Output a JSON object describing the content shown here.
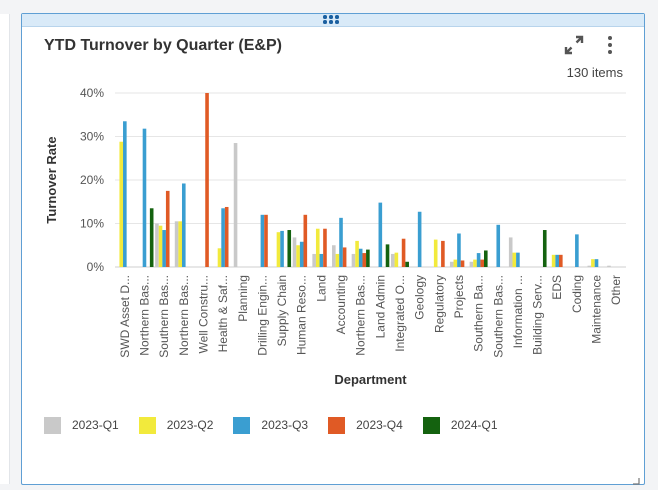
{
  "card": {
    "title": "YTD Turnover by Quarter (E&P)",
    "item_count": "130 items",
    "expand_icon": "expand-icon",
    "more_icon": "more-vertical-icon"
  },
  "colors": {
    "border": "#5f9fd4",
    "series": [
      "#c9c9c9",
      "#f2ea3c",
      "#3a9ed1",
      "#e05a25",
      "#14620f"
    ]
  },
  "chart_data": {
    "type": "bar",
    "title": "YTD Turnover by Quarter (E&P)",
    "xlabel": "Department",
    "ylabel": "Turnover Rate",
    "ylim": [
      0,
      0.4
    ],
    "yticks": [
      "0%",
      "10%",
      "20%",
      "30%",
      "40%"
    ],
    "grid": true,
    "legend_position": "bottom",
    "categories": [
      "SWD Asset D...",
      "Northern Bas...",
      "Southern Bas...",
      "Northern Bas...",
      "Well Constru...",
      "Health & Saf...",
      "Planning",
      "Drilling Engin...",
      "Supply Chain",
      "Human Reso...",
      "Land",
      "Accounting",
      "Northern Bas...",
      "Land Admin",
      "Integrated O...",
      "Geology",
      "Regulatory",
      "Projects",
      "Southern Ba...",
      "Southern Bas...",
      "Information ...",
      "Building Serv...",
      "EDS",
      "Coding",
      "Maintenance",
      "Other"
    ],
    "series": [
      {
        "name": "2023-Q1",
        "values": [
          0,
          0,
          0.1,
          0.105,
          0,
          0,
          0.285,
          0,
          0,
          0.068,
          0.03,
          0.05,
          0.03,
          0,
          0.03,
          0,
          0,
          0.012,
          0.012,
          0,
          0.068,
          0,
          0,
          0,
          0.003,
          0.003
        ]
      },
      {
        "name": "2023-Q2",
        "values": [
          0.288,
          0,
          0.095,
          0.105,
          0,
          0.043,
          0,
          0,
          0.08,
          0.05,
          0.088,
          0.03,
          0.06,
          0,
          0.033,
          0,
          0.063,
          0.017,
          0.017,
          0,
          0.033,
          0,
          0.028,
          0,
          0.018,
          0
        ]
      },
      {
        "name": "2023-Q3",
        "values": [
          0.335,
          0.318,
          0.085,
          0.192,
          0,
          0.135,
          0,
          0.12,
          0.083,
          0.058,
          0.03,
          0.113,
          0.042,
          0.148,
          0,
          0.127,
          0,
          0.077,
          0.032,
          0.097,
          0.033,
          0,
          0.028,
          0.075,
          0.018,
          0
        ]
      },
      {
        "name": "2023-Q4",
        "values": [
          0,
          0,
          0.175,
          0,
          0.4,
          0.138,
          0,
          0.12,
          0,
          0.12,
          0.088,
          0.045,
          0.032,
          0,
          0.065,
          0,
          0.06,
          0.015,
          0.017,
          0,
          0,
          0,
          0.028,
          0,
          0,
          0
        ]
      },
      {
        "name": "2024-Q1",
        "values": [
          0,
          0.135,
          0,
          0,
          0,
          0,
          0,
          0,
          0.085,
          0,
          0,
          0,
          0.04,
          0.052,
          0.012,
          0,
          0,
          0,
          0.038,
          0,
          0,
          0.085,
          0,
          0,
          0,
          0
        ]
      }
    ]
  }
}
